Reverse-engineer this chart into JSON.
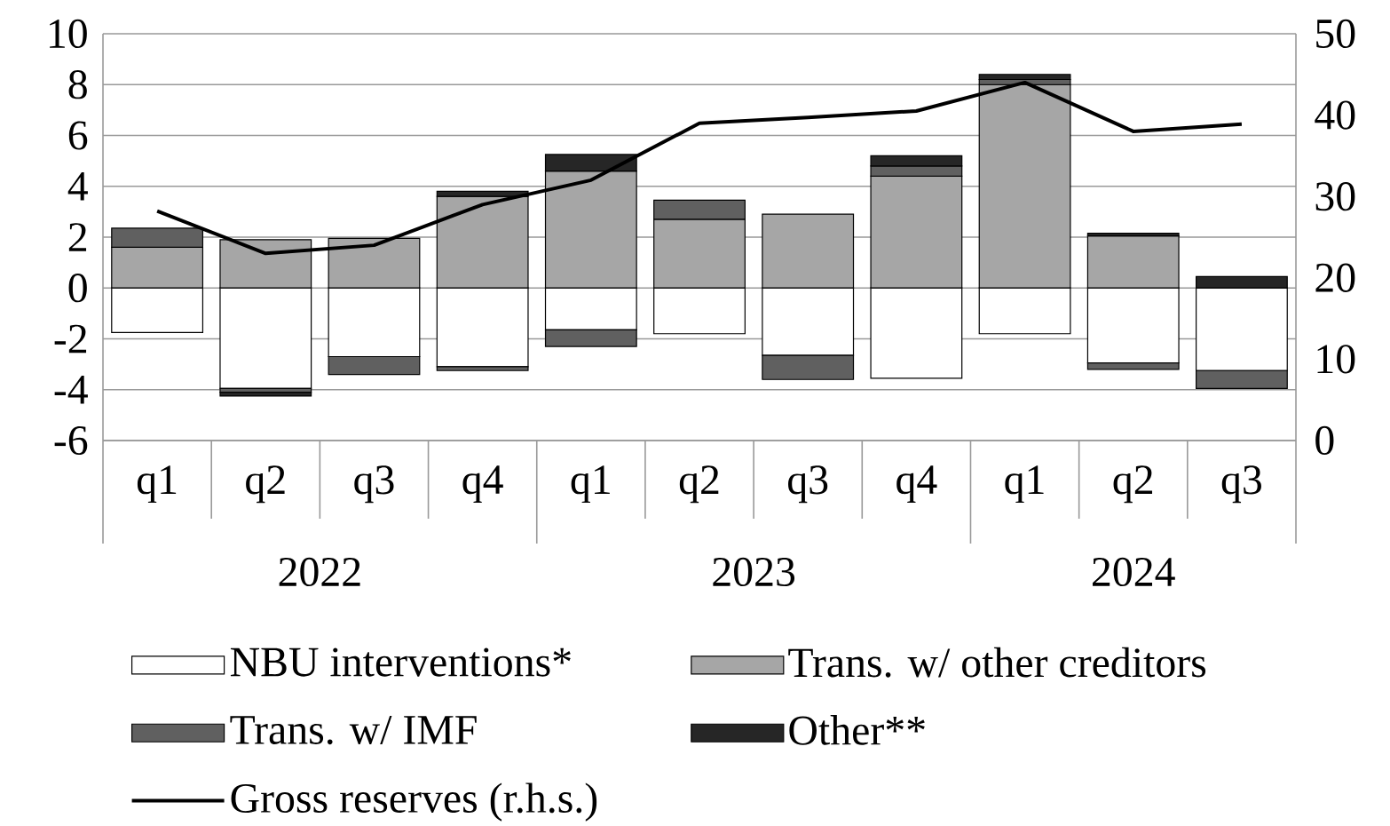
{
  "chart_data": {
    "type": "bar",
    "stacked": true,
    "categories": [
      "q1",
      "q2",
      "q3",
      "q4",
      "q1",
      "q2",
      "q3",
      "q4",
      "q1",
      "q2",
      "q3"
    ],
    "annotations": [
      "2022",
      "2023",
      "2024"
    ],
    "series": [
      {
        "name": "NBU interventions*",
        "color": "#ffffff",
        "values": [
          -1.75,
          -3.95,
          -2.7,
          -3.1,
          -1.65,
          -1.8,
          -2.65,
          -3.55,
          -1.8,
          -2.95,
          -3.25
        ]
      },
      {
        "name": "Trans. w/ other creditors",
        "color": "#a6a6a6",
        "values": [
          1.6,
          1.9,
          1.95,
          3.6,
          4.6,
          2.7,
          2.9,
          4.4,
          8.0,
          2.05,
          0
        ]
      },
      {
        "name": "Trans. w/ IMF",
        "color": "#606060",
        "values": [
          0.75,
          -0.15,
          -0.7,
          -0.15,
          -0.65,
          0.75,
          -0.95,
          0.4,
          0.2,
          -0.25,
          -0.7
        ]
      },
      {
        "name": "Other**",
        "color": "#262626",
        "values": [
          0,
          -0.15,
          0,
          0.2,
          0.65,
          0,
          0,
          0.4,
          0.2,
          0.1,
          0.45
        ]
      },
      {
        "name": "Gross reserves (r.h.s.)",
        "type": "line",
        "axis": "y2",
        "color": "#000000",
        "values": [
          28.2,
          23,
          24,
          29,
          32,
          39,
          39.7,
          40.5,
          44,
          38,
          38.9
        ]
      }
    ],
    "ylim": [
      -6,
      10
    ],
    "yticks": [
      -6,
      -4,
      -2,
      0,
      2,
      4,
      6,
      8,
      10
    ],
    "y2lim": [
      0,
      50
    ],
    "y2ticks": [
      0,
      10,
      20,
      30,
      40,
      50
    ],
    "grid": "y",
    "legend": "bottom"
  }
}
